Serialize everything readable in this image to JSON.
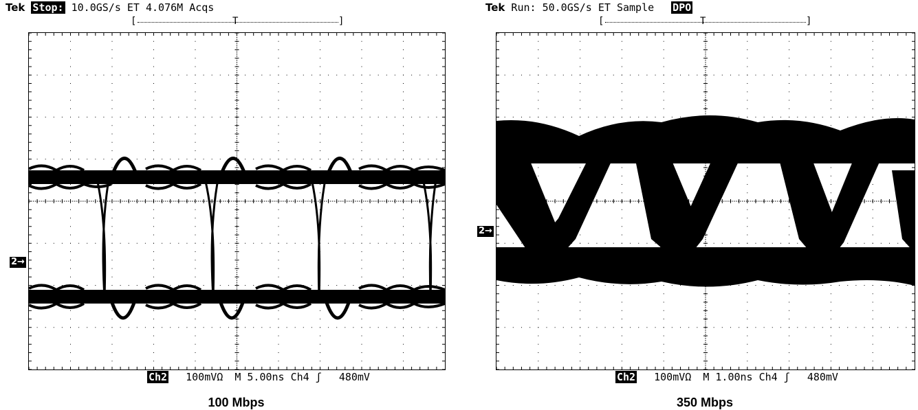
{
  "left_scope": {
    "brand": "Tek",
    "state_badge": "Stop:",
    "status_text": "10.0GS/s ET   4.076M Acqs",
    "trigger_mark": "T",
    "channel_marker": "2→",
    "readout": {
      "channel": "Ch2",
      "scale": "100mVΩ",
      "timebase": "M 5.00ns",
      "trigger_source": "Ch4",
      "trigger_slope": "ʃ",
      "trigger_level": "480mV"
    },
    "caption": "100 Mbps"
  },
  "right_scope": {
    "brand": "Tek",
    "status_text": "Run: 50.0GS/s ET Sample",
    "mode_badge": "DPO",
    "trigger_mark": "T",
    "channel_marker": "2→",
    "readout": {
      "channel": "Ch2",
      "scale": "100mVΩ",
      "timebase": "M 1.00ns",
      "trigger_source": "Ch4",
      "trigger_slope": "ʃ",
      "trigger_level": "480mV"
    },
    "caption": "350 Mbps"
  },
  "colors": {
    "trace": "#000000",
    "background": "#ffffff",
    "graticule": "#000000"
  }
}
